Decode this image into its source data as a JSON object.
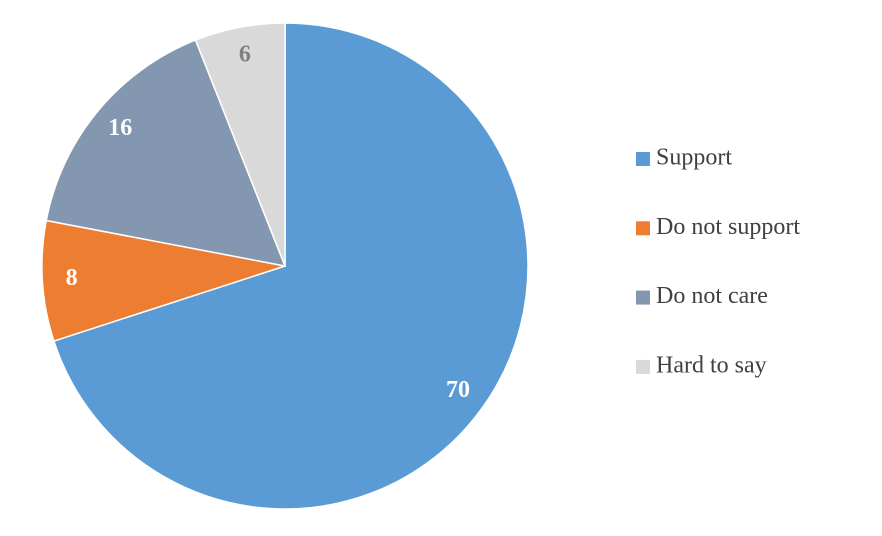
{
  "chart_data": {
    "type": "pie",
    "categories": [
      "Support",
      "Do not support",
      "Do not care",
      "Hard to say"
    ],
    "values": [
      70,
      8,
      16,
      6
    ],
    "colors": [
      "#5b9bd5",
      "#ed7d31",
      "#8497b0",
      "#d9d9d9"
    ],
    "legend": "right"
  }
}
